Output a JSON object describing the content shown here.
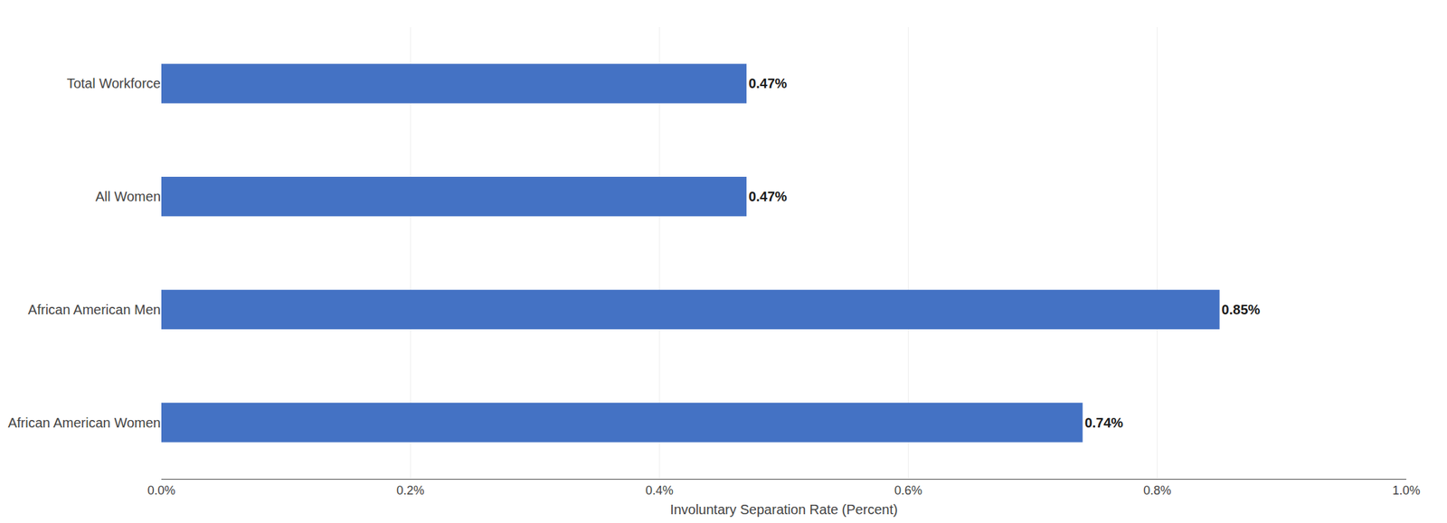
{
  "chart_data": {
    "type": "bar",
    "orientation": "horizontal",
    "categories": [
      "African American Women",
      "African American Men",
      "All Women",
      "Total Workforce"
    ],
    "values": [
      0.0074,
      0.0085,
      0.0047,
      0.0047
    ],
    "value_labels": [
      "0.74%",
      "0.85%",
      "0.47%",
      "0.47%"
    ],
    "data_labels": true,
    "color": "#4472C4",
    "xlabel": "Involuntary Separation Rate (Percent)",
    "xlim": [
      0,
      0.01
    ],
    "xticks": [
      {
        "value": 0.0,
        "label": "0.0%"
      },
      {
        "value": 0.002,
        "label": "0.2%"
      },
      {
        "value": 0.004,
        "label": "0.4%"
      },
      {
        "value": 0.006,
        "label": "0.6%"
      },
      {
        "value": 0.008,
        "label": "0.8%"
      },
      {
        "value": 0.01,
        "label": "1.0%"
      }
    ],
    "grid": true
  }
}
